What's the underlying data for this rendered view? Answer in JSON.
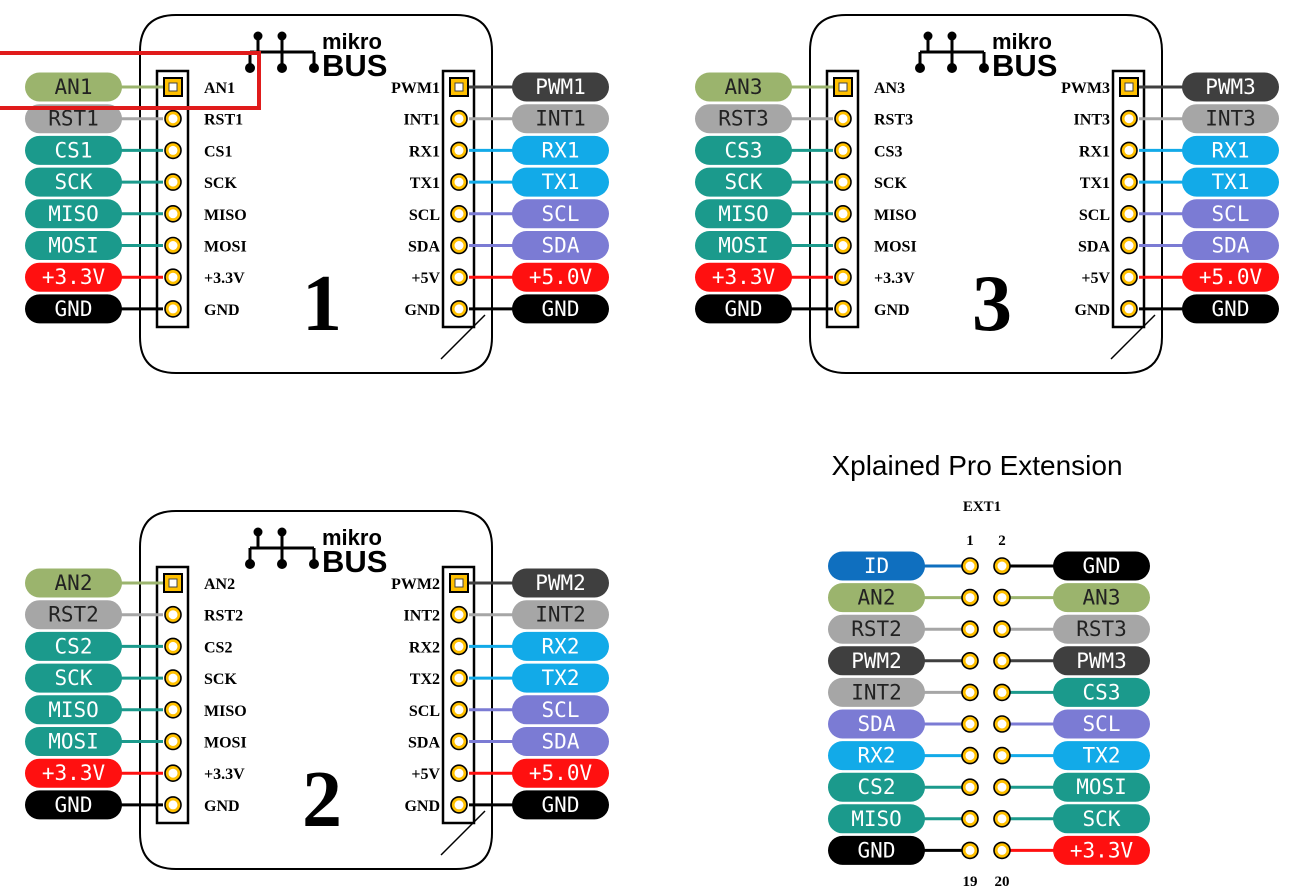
{
  "colors": {
    "analog": "#9bb46d",
    "rst": "#a6a6a6",
    "spi": "#1b9a8c",
    "uart": "#12aae8",
    "i2c": "#7b7bd4",
    "power": "#ff1010",
    "gnd": "#000000",
    "pwm": "#3f3f3f",
    "id": "#0f6fbf",
    "pad": "#ffc000",
    "highlight": "#e01b1b"
  },
  "modules": [
    {
      "number": "1",
      "logo_top": "mikro",
      "logo_bottom": "BUS",
      "left": [
        {
          "pin": "AN1",
          "tag": "AN1",
          "color": "analog"
        },
        {
          "pin": "RST1",
          "tag": "RST1",
          "color": "rst"
        },
        {
          "pin": "CS1",
          "tag": "CS1",
          "color": "spi"
        },
        {
          "pin": "SCK",
          "tag": "SCK",
          "color": "spi"
        },
        {
          "pin": "MISO",
          "tag": "MISO",
          "color": "spi"
        },
        {
          "pin": "MOSI",
          "tag": "MOSI",
          "color": "spi"
        },
        {
          "pin": "+3.3V",
          "tag": "+3.3V",
          "color": "power"
        },
        {
          "pin": "GND",
          "tag": "GND",
          "color": "gnd"
        }
      ],
      "right": [
        {
          "pin": "PWM1",
          "tag": "PWM1",
          "color": "pwm"
        },
        {
          "pin": "INT1",
          "tag": "INT1",
          "color": "rst"
        },
        {
          "pin": "RX1",
          "tag": "RX1",
          "color": "uart"
        },
        {
          "pin": "TX1",
          "tag": "TX1",
          "color": "uart"
        },
        {
          "pin": "SCL",
          "tag": "SCL",
          "color": "i2c"
        },
        {
          "pin": "SDA",
          "tag": "SDA",
          "color": "i2c"
        },
        {
          "pin": "+5V",
          "tag": "+5.0V",
          "color": "power"
        },
        {
          "pin": "GND",
          "tag": "GND",
          "color": "gnd"
        }
      ],
      "highlighted_pin": "AN1"
    },
    {
      "number": "3",
      "logo_top": "mikro",
      "logo_bottom": "BUS",
      "left": [
        {
          "pin": "AN3",
          "tag": "AN3",
          "color": "analog"
        },
        {
          "pin": "RST3",
          "tag": "RST3",
          "color": "rst"
        },
        {
          "pin": "CS3",
          "tag": "CS3",
          "color": "spi"
        },
        {
          "pin": "SCK",
          "tag": "SCK",
          "color": "spi"
        },
        {
          "pin": "MISO",
          "tag": "MISO",
          "color": "spi"
        },
        {
          "pin": "MOSI",
          "tag": "MOSI",
          "color": "spi"
        },
        {
          "pin": "+3.3V",
          "tag": "+3.3V",
          "color": "power"
        },
        {
          "pin": "GND",
          "tag": "GND",
          "color": "gnd"
        }
      ],
      "right": [
        {
          "pin": "PWM3",
          "tag": "PWM3",
          "color": "pwm"
        },
        {
          "pin": "INT3",
          "tag": "INT3",
          "color": "rst"
        },
        {
          "pin": "RX1",
          "tag": "RX1",
          "color": "uart"
        },
        {
          "pin": "TX1",
          "tag": "TX1",
          "color": "uart"
        },
        {
          "pin": "SCL",
          "tag": "SCL",
          "color": "i2c"
        },
        {
          "pin": "SDA",
          "tag": "SDA",
          "color": "i2c"
        },
        {
          "pin": "+5V",
          "tag": "+5.0V",
          "color": "power"
        },
        {
          "pin": "GND",
          "tag": "GND",
          "color": "gnd"
        }
      ],
      "highlighted_pin": ""
    },
    {
      "number": "2",
      "logo_top": "mikro",
      "logo_bottom": "BUS",
      "left": [
        {
          "pin": "AN2",
          "tag": "AN2",
          "color": "analog"
        },
        {
          "pin": "RST2",
          "tag": "RST2",
          "color": "rst"
        },
        {
          "pin": "CS2",
          "tag": "CS2",
          "color": "spi"
        },
        {
          "pin": "SCK",
          "tag": "SCK",
          "color": "spi"
        },
        {
          "pin": "MISO",
          "tag": "MISO",
          "color": "spi"
        },
        {
          "pin": "MOSI",
          "tag": "MOSI",
          "color": "spi"
        },
        {
          "pin": "+3.3V",
          "tag": "+3.3V",
          "color": "power"
        },
        {
          "pin": "GND",
          "tag": "GND",
          "color": "gnd"
        }
      ],
      "right": [
        {
          "pin": "PWM2",
          "tag": "PWM2",
          "color": "pwm"
        },
        {
          "pin": "INT2",
          "tag": "INT2",
          "color": "rst"
        },
        {
          "pin": "RX2",
          "tag": "RX2",
          "color": "uart"
        },
        {
          "pin": "TX2",
          "tag": "TX2",
          "color": "uart"
        },
        {
          "pin": "SCL",
          "tag": "SCL",
          "color": "i2c"
        },
        {
          "pin": "SDA",
          "tag": "SDA",
          "color": "i2c"
        },
        {
          "pin": "+5V",
          "tag": "+5.0V",
          "color": "power"
        },
        {
          "pin": "GND",
          "tag": "GND",
          "color": "gnd"
        }
      ],
      "highlighted_pin": ""
    }
  ],
  "xpro": {
    "title": "Xplained Pro Extension",
    "header": "EXT1",
    "top_pin_numbers": [
      "1",
      "2"
    ],
    "bottom_pin_numbers": [
      "19",
      "20"
    ],
    "rows": [
      {
        "left": "ID",
        "left_color": "id",
        "right": "GND",
        "right_color": "gnd"
      },
      {
        "left": "AN2",
        "left_color": "analog",
        "right": "AN3",
        "right_color": "analog"
      },
      {
        "left": "RST2",
        "left_color": "rst",
        "right": "RST3",
        "right_color": "rst"
      },
      {
        "left": "PWM2",
        "left_color": "pwm",
        "right": "PWM3",
        "right_color": "pwm"
      },
      {
        "left": "INT2",
        "left_color": "rst",
        "right": "CS3",
        "right_color": "spi"
      },
      {
        "left": "SDA",
        "left_color": "i2c",
        "right": "SCL",
        "right_color": "i2c"
      },
      {
        "left": "RX2",
        "left_color": "uart",
        "right": "TX2",
        "right_color": "uart"
      },
      {
        "left": "CS2",
        "left_color": "spi",
        "right": "MOSI",
        "right_color": "spi"
      },
      {
        "left": "MISO",
        "left_color": "spi",
        "right": "SCK",
        "right_color": "spi"
      },
      {
        "left": "GND",
        "left_color": "gnd",
        "right": "+3.3V",
        "right_color": "power"
      }
    ]
  }
}
